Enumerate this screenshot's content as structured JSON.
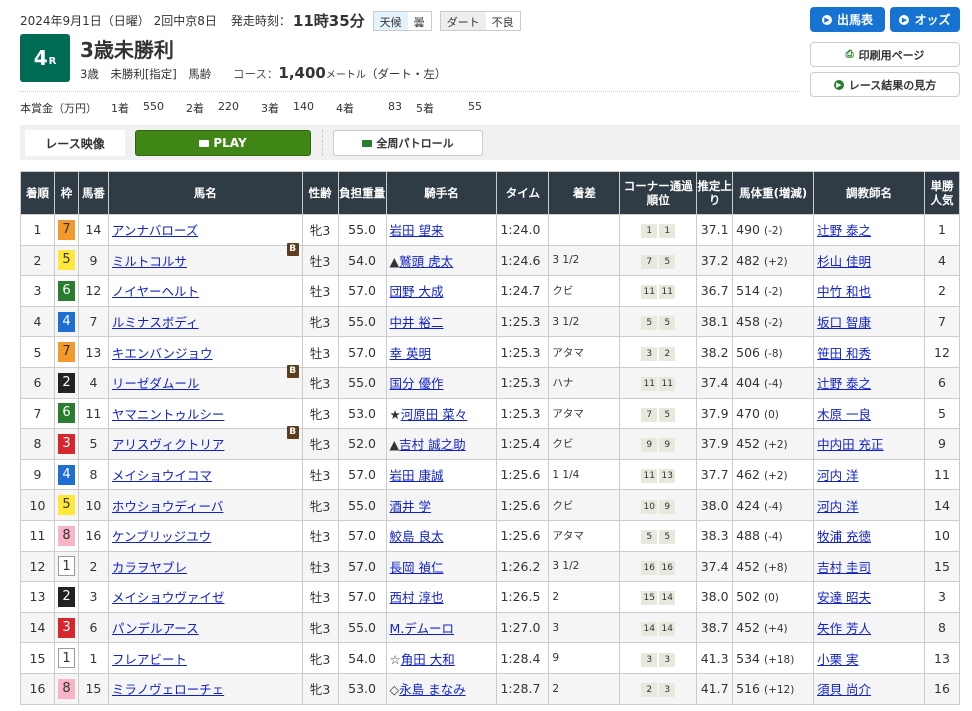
{
  "header": {
    "date": "2024年9月1日（日曜） 2回中京8日",
    "start_label": "発走時刻：",
    "start_time": "11時35分",
    "weather_label": "天候",
    "weather": "曇",
    "track_label": "ダート",
    "track_condition": "不良"
  },
  "race": {
    "number": "4",
    "number_suffix": "R",
    "title": "3歳未勝利",
    "conditions": "3歳　未勝利[指定]　馬齢",
    "course_label": "コース：",
    "distance": "1,400",
    "unit": "メートル",
    "course_detail": "（ダート・左）"
  },
  "prize": {
    "label": "本賞金（万円）",
    "items": [
      {
        "place": "1着",
        "amount": "550"
      },
      {
        "place": "2着",
        "amount": "220"
      },
      {
        "place": "3着",
        "amount": "140"
      },
      {
        "place": "4着",
        "amount": "83"
      },
      {
        "place": "5着",
        "amount": "55"
      }
    ]
  },
  "buttons": {
    "entries": "出馬表",
    "odds": "オッズ",
    "print": "印刷用ページ",
    "howto": "レース結果の見方"
  },
  "video": {
    "label": "レース映像",
    "play": "PLAY",
    "patrol": "全周パトロール"
  },
  "colors": {
    "race_badge": "#006b54",
    "blue_button": "#1773d2",
    "play_button": "#3f8617",
    "table_header": "#2f3c45"
  },
  "frame_colors": {
    "1": {
      "bg": "#ffffff",
      "fg": "#333",
      "border": "#999"
    },
    "2": {
      "bg": "#222222",
      "fg": "#fff"
    },
    "3": {
      "bg": "#d7262c",
      "fg": "#fff"
    },
    "4": {
      "bg": "#1e6fd1",
      "fg": "#fff"
    },
    "5": {
      "bg": "#ffe83a",
      "fg": "#333"
    },
    "6": {
      "bg": "#2a7d2e",
      "fg": "#fff"
    },
    "7": {
      "bg": "#f39a2c",
      "fg": "#333"
    },
    "8": {
      "bg": "#f7b5c6",
      "fg": "#333"
    }
  },
  "table": {
    "headers": [
      "着順",
      "枠",
      "馬番",
      "馬名",
      "性齢",
      "負担重量",
      "騎手名",
      "タイム",
      "着差",
      "コーナー通過順位",
      "推定上り",
      "馬体重(増減)",
      "調教師名",
      "単勝人気"
    ],
    "rows": [
      {
        "pos": "1",
        "frame": "7",
        "num": "14",
        "horse": "アンナバローズ",
        "blinker": "",
        "sexage": "牝3",
        "weight": "55.0",
        "mark": "",
        "jockey": "岩田 望来",
        "time": "1:24.0",
        "margin": "",
        "corner": [
          "1",
          "1"
        ],
        "last3f": "37.1",
        "bw": "490",
        "bwd": "(-2)",
        "trainer": "辻野 泰之",
        "pop": "1"
      },
      {
        "pos": "2",
        "frame": "5",
        "num": "9",
        "horse": "ミルトコルサ",
        "blinker": "B",
        "sexage": "牡3",
        "weight": "54.0",
        "mark": "▲",
        "jockey": "鷲頭 虎太",
        "time": "1:24.6",
        "margin": "3 1/2",
        "corner": [
          "7",
          "5"
        ],
        "last3f": "37.2",
        "bw": "482",
        "bwd": "(+2)",
        "trainer": "杉山 佳明",
        "pop": "4"
      },
      {
        "pos": "3",
        "frame": "6",
        "num": "12",
        "horse": "ノイヤーヘルト",
        "blinker": "",
        "sexage": "牡3",
        "weight": "57.0",
        "mark": "",
        "jockey": "団野 大成",
        "time": "1:24.7",
        "margin": "クビ",
        "corner": [
          "11",
          "11"
        ],
        "last3f": "36.7",
        "bw": "514",
        "bwd": "(-2)",
        "trainer": "中竹 和也",
        "pop": "2"
      },
      {
        "pos": "4",
        "frame": "4",
        "num": "7",
        "horse": "ルミナスボディ",
        "blinker": "",
        "sexage": "牝3",
        "weight": "55.0",
        "mark": "",
        "jockey": "中井 裕二",
        "time": "1:25.3",
        "margin": "3 1/2",
        "corner": [
          "5",
          "5"
        ],
        "last3f": "38.1",
        "bw": "458",
        "bwd": "(-2)",
        "trainer": "坂口 智康",
        "pop": "7"
      },
      {
        "pos": "5",
        "frame": "7",
        "num": "13",
        "horse": "キエンバンジョウ",
        "blinker": "",
        "sexage": "牡3",
        "weight": "57.0",
        "mark": "",
        "jockey": "幸 英明",
        "time": "1:25.3",
        "margin": "アタマ",
        "corner": [
          "3",
          "2"
        ],
        "last3f": "38.2",
        "bw": "506",
        "bwd": "(-8)",
        "trainer": "笹田 和秀",
        "pop": "12"
      },
      {
        "pos": "6",
        "frame": "2",
        "num": "4",
        "horse": "リーゼダムール",
        "blinker": "B",
        "sexage": "牝3",
        "weight": "55.0",
        "mark": "",
        "jockey": "国分 優作",
        "time": "1:25.3",
        "margin": "ハナ",
        "corner": [
          "11",
          "11"
        ],
        "last3f": "37.4",
        "bw": "404",
        "bwd": "(-4)",
        "trainer": "辻野 泰之",
        "pop": "6"
      },
      {
        "pos": "7",
        "frame": "6",
        "num": "11",
        "horse": "ヤマニントゥルシー",
        "blinker": "",
        "sexage": "牝3",
        "weight": "53.0",
        "mark": "★",
        "jockey": "河原田 菜々",
        "time": "1:25.3",
        "margin": "アタマ",
        "corner": [
          "7",
          "5"
        ],
        "last3f": "37.9",
        "bw": "470",
        "bwd": "(0)",
        "trainer": "木原 一良",
        "pop": "5"
      },
      {
        "pos": "8",
        "frame": "3",
        "num": "5",
        "horse": "アリスヴィクトリア",
        "blinker": "B",
        "sexage": "牝3",
        "weight": "52.0",
        "mark": "▲",
        "jockey": "吉村 誠之助",
        "time": "1:25.4",
        "margin": "クビ",
        "corner": [
          "9",
          "9"
        ],
        "last3f": "37.9",
        "bw": "452",
        "bwd": "(+2)",
        "trainer": "中内田 充正",
        "pop": "9"
      },
      {
        "pos": "9",
        "frame": "4",
        "num": "8",
        "horse": "メイショウイコマ",
        "blinker": "",
        "sexage": "牡3",
        "weight": "57.0",
        "mark": "",
        "jockey": "岩田 康誠",
        "time": "1:25.6",
        "margin": "1 1/4",
        "corner": [
          "11",
          "13"
        ],
        "last3f": "37.7",
        "bw": "462",
        "bwd": "(+2)",
        "trainer": "河内 洋",
        "pop": "11"
      },
      {
        "pos": "10",
        "frame": "5",
        "num": "10",
        "horse": "ホウショウディーバ",
        "blinker": "",
        "sexage": "牝3",
        "weight": "55.0",
        "mark": "",
        "jockey": "酒井 学",
        "time": "1:25.6",
        "margin": "クビ",
        "corner": [
          "10",
          "9"
        ],
        "last3f": "38.0",
        "bw": "424",
        "bwd": "(-4)",
        "trainer": "河内 洋",
        "pop": "14"
      },
      {
        "pos": "11",
        "frame": "8",
        "num": "16",
        "horse": "ケンブリッジユウ",
        "blinker": "",
        "sexage": "牡3",
        "weight": "57.0",
        "mark": "",
        "jockey": "鮫島 良太",
        "time": "1:25.6",
        "margin": "アタマ",
        "corner": [
          "5",
          "5"
        ],
        "last3f": "38.3",
        "bw": "488",
        "bwd": "(-4)",
        "trainer": "牧浦 充徳",
        "pop": "10"
      },
      {
        "pos": "12",
        "frame": "1",
        "num": "2",
        "horse": "カラヲヤブレ",
        "blinker": "",
        "sexage": "牡3",
        "weight": "57.0",
        "mark": "",
        "jockey": "長岡 禎仁",
        "time": "1:26.2",
        "margin": "3 1/2",
        "corner": [
          "16",
          "16"
        ],
        "last3f": "37.4",
        "bw": "452",
        "bwd": "(+8)",
        "trainer": "吉村 圭司",
        "pop": "15"
      },
      {
        "pos": "13",
        "frame": "2",
        "num": "3",
        "horse": "メイショウヴァイゼ",
        "blinker": "",
        "sexage": "牡3",
        "weight": "57.0",
        "mark": "",
        "jockey": "西村 淳也",
        "time": "1:26.5",
        "margin": "2",
        "corner": [
          "15",
          "14"
        ],
        "last3f": "38.0",
        "bw": "502",
        "bwd": "(0)",
        "trainer": "安達 昭夫",
        "pop": "3"
      },
      {
        "pos": "14",
        "frame": "3",
        "num": "6",
        "horse": "パンデルアース",
        "blinker": "",
        "sexage": "牝3",
        "weight": "55.0",
        "mark": "",
        "jockey": "M.デムーロ",
        "time": "1:27.0",
        "margin": "3",
        "corner": [
          "14",
          "14"
        ],
        "last3f": "38.7",
        "bw": "452",
        "bwd": "(+4)",
        "trainer": "矢作 芳人",
        "pop": "8"
      },
      {
        "pos": "15",
        "frame": "1",
        "num": "1",
        "horse": "フレアビート",
        "blinker": "",
        "sexage": "牝3",
        "weight": "54.0",
        "mark": "☆",
        "jockey": "角田 大和",
        "time": "1:28.4",
        "margin": "9",
        "corner": [
          "3",
          "3"
        ],
        "last3f": "41.3",
        "bw": "534",
        "bwd": "(+18)",
        "trainer": "小栗 実",
        "pop": "13"
      },
      {
        "pos": "16",
        "frame": "8",
        "num": "15",
        "horse": "ミラノヴェローチェ",
        "blinker": "",
        "sexage": "牝3",
        "weight": "53.0",
        "mark": "◇",
        "jockey": "永島 まなみ",
        "time": "1:28.7",
        "margin": "2",
        "corner": [
          "2",
          "3"
        ],
        "last3f": "41.7",
        "bw": "516",
        "bwd": "(+12)",
        "trainer": "須貝 尚介",
        "pop": "16"
      }
    ]
  }
}
